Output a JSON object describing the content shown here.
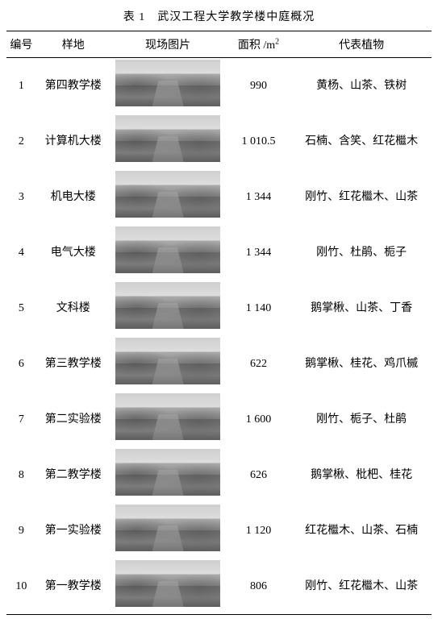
{
  "title": "表 1　武汉工程大学教学楼中庭概况",
  "headers": {
    "num": "编号",
    "site": "样地",
    "image": "现场图片",
    "area_prefix": "面积 /m",
    "area_sup": "2",
    "plants": "代表植物"
  },
  "rows": [
    {
      "num": "1",
      "site": "第四教学楼",
      "area": "990",
      "plants": "黄杨、山茶、铁树"
    },
    {
      "num": "2",
      "site": "计算机大楼",
      "area": "1 010.5",
      "plants": "石楠、含笑、红花檵木"
    },
    {
      "num": "3",
      "site": "机电大楼",
      "area": "1 344",
      "plants": "刚竹、红花檵木、山茶"
    },
    {
      "num": "4",
      "site": "电气大楼",
      "area": "1 344",
      "plants": "刚竹、杜鹃、栀子"
    },
    {
      "num": "5",
      "site": "文科楼",
      "area": "1 140",
      "plants": "鹅掌楸、山茶、丁香"
    },
    {
      "num": "6",
      "site": "第三教学楼",
      "area": "622",
      "plants": "鹅掌楸、桂花、鸡爪槭"
    },
    {
      "num": "7",
      "site": "第二实验楼",
      "area": "1 600",
      "plants": "刚竹、栀子、杜鹃"
    },
    {
      "num": "8",
      "site": "第二教学楼",
      "area": "626",
      "plants": "鹅掌楸、枇杷、桂花"
    },
    {
      "num": "9",
      "site": "第一实验楼",
      "area": "1 120",
      "plants": "红花檵木、山茶、石楠"
    },
    {
      "num": "10",
      "site": "第一教学楼",
      "area": "806",
      "plants": "刚竹、红花檵木、山茶"
    }
  ]
}
